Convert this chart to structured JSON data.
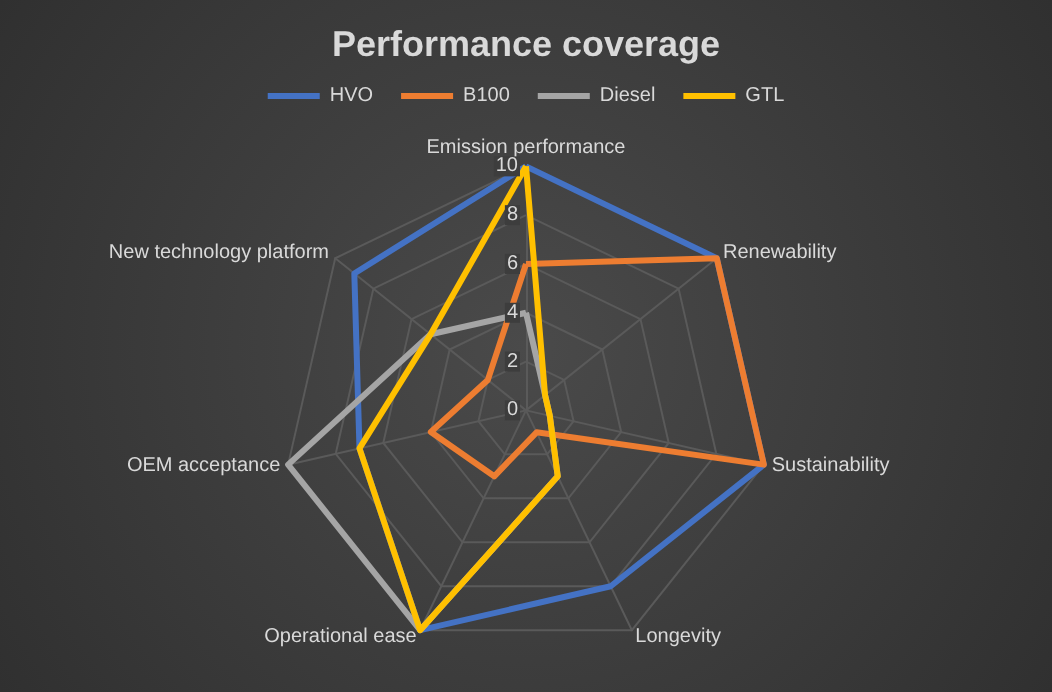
{
  "chart_data": {
    "type": "radar",
    "title": "Performance coverage",
    "categories": [
      "Emission performance",
      "Renewability",
      "Sustainability",
      "Longevity",
      "Operational ease",
      "OEM acceptance",
      "New technology platform"
    ],
    "series": [
      {
        "name": "HVO",
        "color": "#4472c4",
        "values": [
          10,
          10,
          10,
          8,
          10,
          7,
          9
        ]
      },
      {
        "name": "B100",
        "color": "#ed7d31",
        "values": [
          6,
          10,
          10,
          1,
          3,
          4,
          2
        ]
      },
      {
        "name": "Diesel",
        "color": "#a5a5a5",
        "values": [
          4,
          1,
          1,
          3,
          10,
          10,
          5
        ]
      },
      {
        "name": "GTL",
        "color": "#ffc000",
        "values": [
          10,
          1,
          1,
          3,
          10,
          7,
          5
        ]
      }
    ],
    "ylim": [
      0,
      10
    ],
    "yticks": [
      0,
      2,
      4,
      6,
      8,
      10
    ],
    "grid": true,
    "legend": "top",
    "marker": "none",
    "line_style": "solid"
  }
}
